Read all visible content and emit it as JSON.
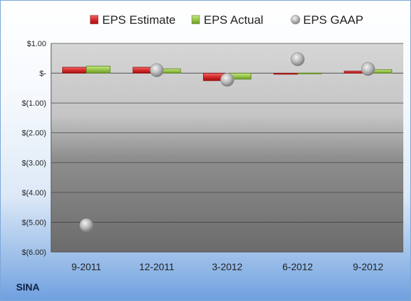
{
  "chart_data": {
    "type": "bar",
    "ticker": "SINA",
    "categories": [
      "9-2011",
      "12-2011",
      "3-2012",
      "6-2012",
      "9-2012"
    ],
    "series": [
      {
        "name": "EPS Estimate",
        "kind": "bar",
        "color": "#c0151c",
        "values": [
          0.2,
          0.2,
          -0.25,
          -0.02,
          0.07
        ]
      },
      {
        "name": "EPS Actual",
        "kind": "bar",
        "color": "#8cc43c",
        "values": [
          0.24,
          0.15,
          -0.2,
          0.01,
          0.12
        ]
      },
      {
        "name": "EPS GAAP",
        "kind": "marker",
        "color": "#b0b0b0",
        "values": [
          -5.1,
          0.1,
          -0.22,
          0.47,
          0.14
        ]
      }
    ],
    "ylim": [
      -6,
      1
    ],
    "yticks": [
      1,
      0,
      -1,
      -2,
      -3,
      -4,
      -5,
      -6
    ],
    "ytick_labels": [
      "$1.00",
      "$-",
      "$(1.00)",
      "$(2.00)",
      "$(3.00)",
      "$(4.00)",
      "$(5.00)",
      "$(6.00)"
    ],
    "grid": true,
    "legend_position": "top"
  }
}
